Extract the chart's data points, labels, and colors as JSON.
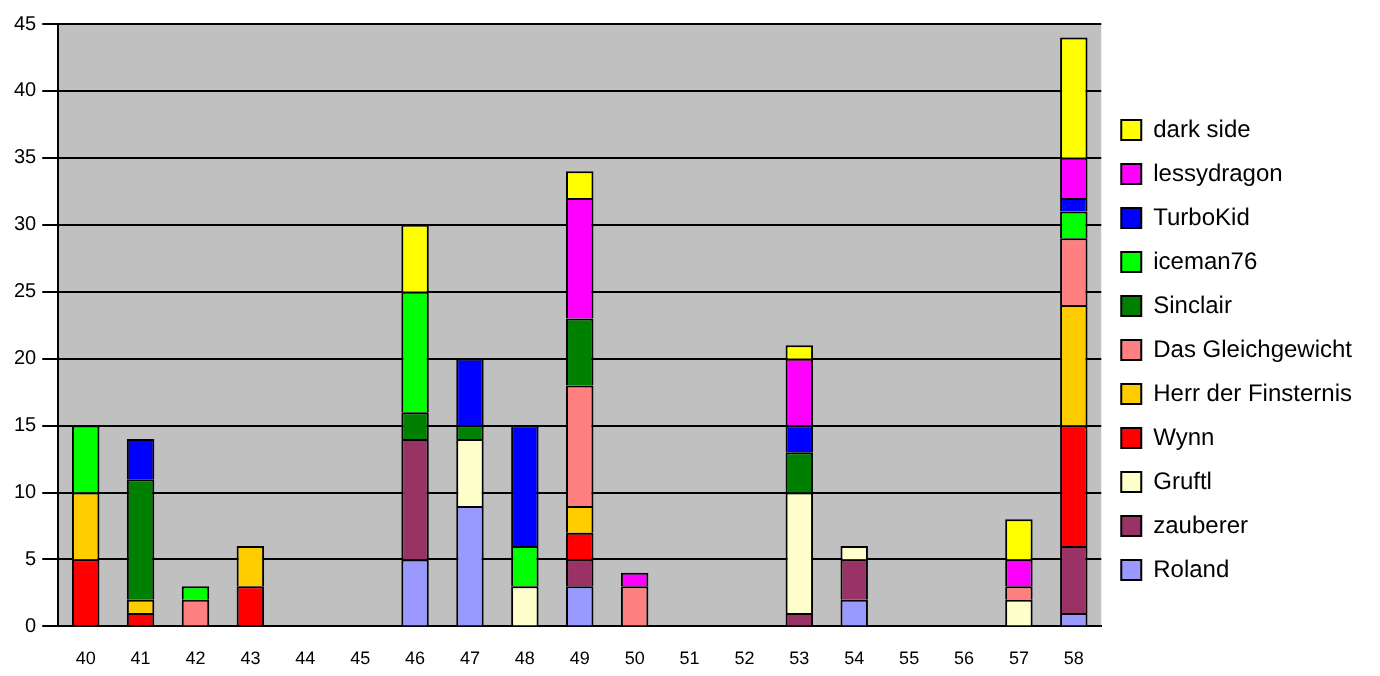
{
  "chart_data": {
    "type": "bar",
    "stacked": true,
    "categories": [
      "40",
      "41",
      "42",
      "43",
      "44",
      "45",
      "46",
      "47",
      "48",
      "49",
      "50",
      "51",
      "52",
      "53",
      "54",
      "55",
      "56",
      "57",
      "58"
    ],
    "series": [
      {
        "name": "Roland",
        "color": "#9999ff",
        "values": [
          0,
          0,
          0,
          0,
          0,
          0,
          5,
          9,
          0,
          3,
          0,
          0,
          0,
          0,
          2,
          0,
          0,
          0,
          1
        ]
      },
      {
        "name": "zauberer",
        "color": "#993366",
        "values": [
          0,
          0,
          0,
          0,
          0,
          0,
          9,
          0,
          0,
          2,
          0,
          0,
          0,
          1,
          3,
          0,
          0,
          0,
          5
        ]
      },
      {
        "name": "Gruftl",
        "color": "#ffffcc",
        "values": [
          0,
          0,
          0,
          0,
          0,
          0,
          0,
          5,
          3,
          0,
          0,
          0,
          0,
          9,
          1,
          0,
          0,
          2,
          0
        ]
      },
      {
        "name": "Wynn",
        "color": "#ff0000",
        "values": [
          5,
          1,
          0,
          3,
          0,
          0,
          0,
          0,
          0,
          2,
          0,
          0,
          0,
          0,
          0,
          0,
          0,
          0,
          9
        ]
      },
      {
        "name": "Herr der Finsternis",
        "color": "#ffcc00",
        "values": [
          5,
          1,
          0,
          3,
          0,
          0,
          0,
          0,
          0,
          2,
          0,
          0,
          0,
          0,
          0,
          0,
          0,
          0,
          9
        ]
      },
      {
        "name": "Das Gleichgewicht",
        "color": "#ff8080",
        "values": [
          0,
          0,
          2,
          0,
          0,
          0,
          0,
          0,
          0,
          9,
          3,
          0,
          0,
          0,
          0,
          0,
          0,
          1,
          5
        ]
      },
      {
        "name": "Sinclair",
        "color": "#008000",
        "values": [
          0,
          9,
          0,
          0,
          0,
          0,
          2,
          1,
          0,
          5,
          0,
          0,
          0,
          3,
          0,
          0,
          0,
          0,
          0
        ]
      },
      {
        "name": "iceman76",
        "color": "#00ff00",
        "values": [
          5,
          0,
          1,
          0,
          0,
          0,
          9,
          0,
          3,
          0,
          0,
          0,
          0,
          0,
          0,
          0,
          0,
          0,
          2
        ]
      },
      {
        "name": "TurboKid",
        "color": "#0000ff",
        "values": [
          0,
          3,
          0,
          0,
          0,
          0,
          0,
          5,
          9,
          0,
          0,
          0,
          0,
          2,
          0,
          0,
          0,
          0,
          1
        ]
      },
      {
        "name": "lessydragon",
        "color": "#ff00ff",
        "values": [
          0,
          0,
          0,
          0,
          0,
          0,
          0,
          0,
          0,
          9,
          1,
          0,
          0,
          5,
          0,
          0,
          0,
          2,
          3
        ]
      },
      {
        "name": "dark side",
        "color": "#ffff00",
        "values": [
          0,
          0,
          0,
          0,
          0,
          0,
          5,
          0,
          0,
          2,
          0,
          0,
          0,
          1,
          0,
          0,
          0,
          3,
          9
        ]
      }
    ],
    "ylim": [
      0,
      45
    ],
    "yticks": [
      0,
      5,
      10,
      15,
      20,
      25,
      30,
      35,
      40,
      45
    ],
    "grid": "y",
    "legend": "right"
  }
}
